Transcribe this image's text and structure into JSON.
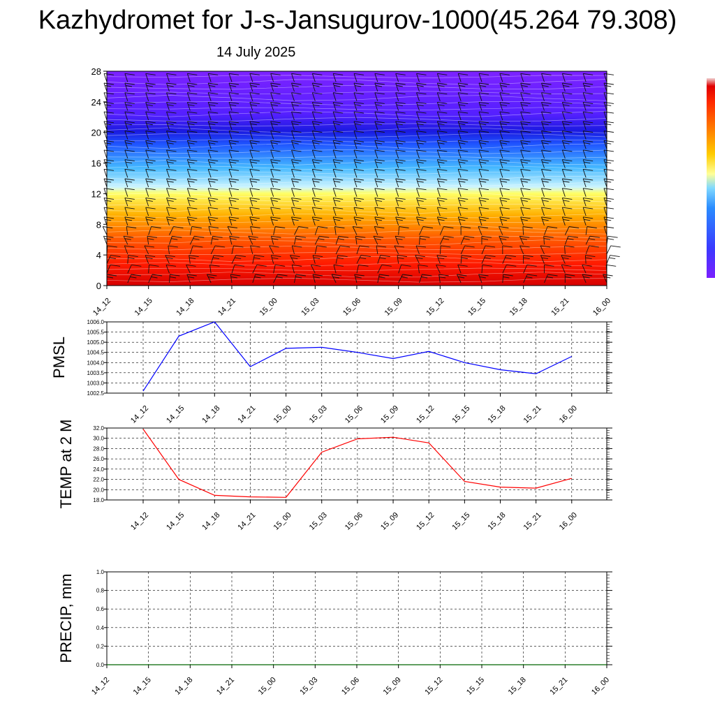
{
  "title": "Kazhydromet for J-s-Jansugurov-1000(45.264 79.308)",
  "subtitle": "14 July 2025",
  "time_labels": [
    "14_12",
    "14_15",
    "14_18",
    "14_21",
    "15_00",
    "15_03",
    "15_06",
    "15_09",
    "15_12",
    "15_15",
    "15_18",
    "15_21",
    "16_00"
  ],
  "chart_data": [
    {
      "type": "heatmap",
      "panel": "height-time cross-section",
      "title": "",
      "xlabel": "",
      "ylabel": "",
      "x": [
        "14_12",
        "14_15",
        "14_18",
        "14_21",
        "15_00",
        "15_03",
        "15_06",
        "15_09",
        "15_12",
        "15_15",
        "15_18",
        "15_21",
        "16_00"
      ],
      "ylim": [
        0,
        28
      ],
      "yticks": [
        "0",
        "4",
        "8",
        "12",
        "16",
        "20",
        "24",
        "28"
      ],
      "colorbar": [
        "#7a1fff",
        "#3a3aff",
        "#2a8cff",
        "#7fd8ff",
        "#ffff99",
        "#ffcc00",
        "#ff7a00",
        "#ff2a00",
        "#e00000"
      ],
      "overlay": "wind barbs"
    },
    {
      "type": "line",
      "panel": "pmsl",
      "ylabel": "PMSL",
      "x": [
        "14_12",
        "14_15",
        "14_18",
        "14_21",
        "15_00",
        "15_03",
        "15_06",
        "15_09",
        "15_12",
        "15_15",
        "15_18",
        "15_21",
        "16_00"
      ],
      "yticks": [
        "1002.5",
        "1003.0",
        "1003.5",
        "1004.0",
        "1004.5",
        "1005.0",
        "1005.5",
        "1006.0"
      ],
      "ylim": [
        1002.5,
        1006.0
      ],
      "color": "#0000ff",
      "series": [
        {
          "values": [
            1002.6,
            1005.3,
            1006.0,
            1003.8,
            1004.7,
            1004.75,
            1004.5,
            1004.2,
            1004.55,
            1004.0,
            1003.65,
            1003.45,
            1004.3
          ]
        }
      ]
    },
    {
      "type": "line",
      "panel": "temp2m",
      "ylabel": "TEMP at 2 M",
      "x": [
        "14_12",
        "14_15",
        "14_18",
        "14_21",
        "15_00",
        "15_03",
        "15_06",
        "15_09",
        "15_12",
        "15_15",
        "15_18",
        "15_21",
        "16_00"
      ],
      "yticks": [
        "18.0",
        "20.0",
        "22.0",
        "24.0",
        "26.0",
        "28.0",
        "30.0",
        "32.0"
      ],
      "ylim": [
        18.0,
        32.0
      ],
      "color": "#ff0000",
      "series": [
        {
          "values": [
            31.8,
            22.0,
            18.9,
            18.6,
            18.5,
            27.3,
            29.9,
            30.2,
            29.1,
            21.6,
            20.5,
            20.3,
            22.2
          ]
        }
      ]
    },
    {
      "type": "line",
      "panel": "precip",
      "ylabel": "PRECIP, mm",
      "x": [
        "14_12",
        "14_15",
        "14_18",
        "14_21",
        "15_00",
        "15_03",
        "15_06",
        "15_09",
        "15_12",
        "15_15",
        "15_18",
        "15_21",
        "16_00"
      ],
      "yticks": [
        "0.0",
        "0.2",
        "0.4",
        "0.6",
        "0.8",
        "1.0"
      ],
      "ylim": [
        0.0,
        1.0
      ],
      "color": "#006400",
      "series": [
        {
          "values": [
            0,
            0,
            0,
            0,
            0,
            0,
            0,
            0,
            0,
            0,
            0,
            0,
            0
          ]
        }
      ]
    }
  ]
}
